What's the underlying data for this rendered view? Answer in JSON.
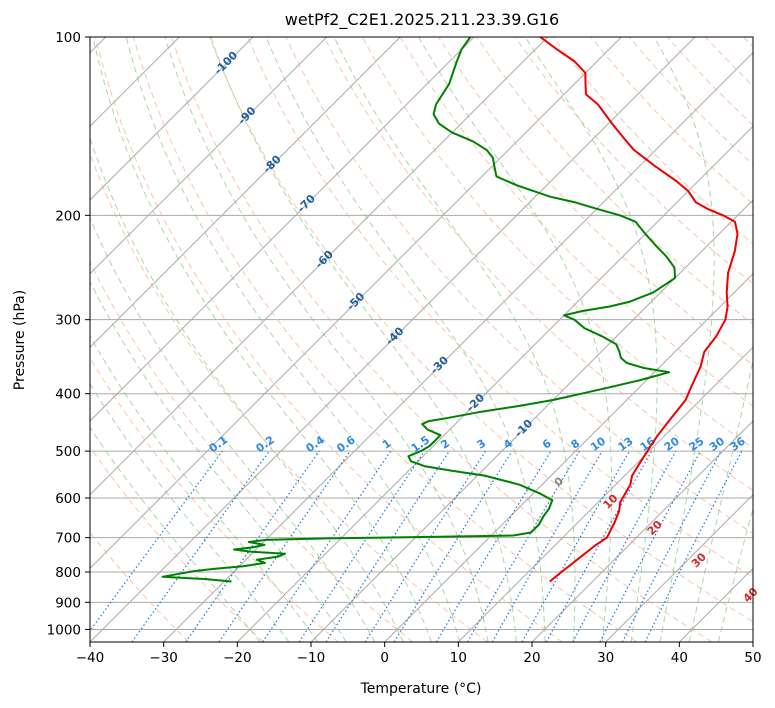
{
  "chart_data": {
    "type": "skew-t",
    "title": "wetPf2_C2E1.2025.211.23.39.G16",
    "xlabel": "Temperature (°C)",
    "ylabel": "Pressure (hPa)",
    "xlim": [
      -40,
      50
    ],
    "ylim": [
      1050,
      100
    ],
    "y_scale": "log",
    "grid": true,
    "x_ticks": [
      "−40",
      "−30",
      "−20",
      "−10",
      "0",
      "10",
      "20",
      "30",
      "40",
      "50"
    ],
    "y_ticks": [
      "100",
      "200",
      "300",
      "400",
      "500",
      "600",
      "700",
      "800",
      "900",
      "1000"
    ],
    "series": [
      {
        "color": "#ee0000",
        "role": "temperature",
        "points": [
          [
            14.2,
            830
          ],
          [
            14.5,
            800
          ],
          [
            15.0,
            760
          ],
          [
            15.5,
            720
          ],
          [
            16.0,
            700
          ],
          [
            15.5,
            680
          ],
          [
            15.0,
            660
          ],
          [
            14.0,
            630
          ],
          [
            13.0,
            610
          ],
          [
            12.5,
            590
          ],
          [
            12.0,
            570
          ],
          [
            11.0,
            550
          ],
          [
            10.5,
            530
          ],
          [
            10.0,
            510
          ],
          [
            9.5,
            490
          ],
          [
            9.0,
            470
          ],
          [
            8.5,
            440
          ],
          [
            8.0,
            410
          ],
          [
            7.0,
            390
          ],
          [
            5.5,
            360
          ],
          [
            4.0,
            340
          ],
          [
            3.5,
            320
          ],
          [
            2.5,
            300
          ],
          [
            1.0,
            285
          ],
          [
            -1.0,
            270
          ],
          [
            -3.5,
            250
          ],
          [
            -5.5,
            230
          ],
          [
            -7.5,
            215
          ],
          [
            -9.5,
            205
          ],
          [
            -12.0,
            200
          ],
          [
            -15.0,
            195
          ],
          [
            -17.5,
            190
          ],
          [
            -20.0,
            182
          ],
          [
            -23.0,
            175
          ],
          [
            -28.0,
            165
          ],
          [
            -33.0,
            155
          ],
          [
            -36.0,
            148
          ],
          [
            -39.5,
            140
          ],
          [
            -44.0,
            130
          ],
          [
            -47.0,
            125
          ],
          [
            -48.5,
            120
          ],
          [
            -50.0,
            115
          ],
          [
            -53.0,
            110
          ],
          [
            -57.0,
            105
          ],
          [
            -61.0,
            100
          ]
        ]
      },
      {
        "color": "#008000",
        "role": "dewpoint",
        "points": [
          [
            -29,
            830
          ],
          [
            -33,
            822
          ],
          [
            -36.5,
            818
          ],
          [
            -39,
            815
          ],
          [
            -37.5,
            807
          ],
          [
            -35.5,
            797
          ],
          [
            -33,
            790
          ],
          [
            -29.5,
            782
          ],
          [
            -27,
            772
          ],
          [
            -28.5,
            763
          ],
          [
            -26,
            753
          ],
          [
            -25.5,
            745
          ],
          [
            -30.5,
            739
          ],
          [
            -33,
            733
          ],
          [
            -30.8,
            727
          ],
          [
            -29.5,
            720
          ],
          [
            -32,
            712
          ],
          [
            -30,
            706
          ],
          [
            -22,
            702
          ],
          [
            -8,
            698
          ],
          [
            3,
            694
          ],
          [
            5,
            686
          ],
          [
            5,
            675
          ],
          [
            5,
            665
          ],
          [
            4.5,
            645
          ],
          [
            4.2,
            625
          ],
          [
            3.5,
            605
          ],
          [
            1,
            590
          ],
          [
            -3,
            570
          ],
          [
            -9,
            550
          ],
          [
            -14,
            540
          ],
          [
            -18.5,
            530
          ],
          [
            -21,
            520
          ],
          [
            -22,
            510
          ],
          [
            -21,
            500
          ],
          [
            -20.5,
            490
          ],
          [
            -20.5,
            480
          ],
          [
            -20.5,
            470
          ],
          [
            -23,
            460
          ],
          [
            -24.5,
            450
          ],
          [
            -24,
            445
          ],
          [
            -22,
            440
          ],
          [
            -18.5,
            430
          ],
          [
            -14,
            420
          ],
          [
            -10,
            410
          ],
          [
            -7,
            400
          ],
          [
            -4,
            390
          ],
          [
            -1,
            380
          ],
          [
            1,
            372
          ],
          [
            2,
            368
          ],
          [
            -2,
            362
          ],
          [
            -5,
            355
          ],
          [
            -6.5,
            348
          ],
          [
            -7.5,
            340
          ],
          [
            -9,
            330
          ],
          [
            -12,
            320
          ],
          [
            -15.5,
            310
          ],
          [
            -18,
            300
          ],
          [
            -20,
            295
          ],
          [
            -18,
            290
          ],
          [
            -15,
            285
          ],
          [
            -13,
            280
          ],
          [
            -11,
            270
          ],
          [
            -10,
            255
          ],
          [
            -11.5,
            245
          ],
          [
            -14,
            235
          ],
          [
            -17,
            225
          ],
          [
            -20,
            215
          ],
          [
            -23,
            205
          ],
          [
            -26,
            200
          ],
          [
            -30,
            195
          ],
          [
            -34,
            190
          ],
          [
            -38,
            186
          ],
          [
            -41,
            182
          ],
          [
            -44,
            178
          ],
          [
            -46,
            175
          ],
          [
            -48,
            172
          ],
          [
            -49,
            168
          ],
          [
            -50,
            164
          ],
          [
            -51,
            160
          ],
          [
            -53,
            155
          ],
          [
            -56,
            150
          ],
          [
            -60,
            145
          ],
          [
            -63,
            140
          ],
          [
            -65,
            135
          ],
          [
            -66,
            130
          ],
          [
            -66.5,
            125
          ],
          [
            -67,
            120
          ],
          [
            -68,
            115
          ],
          [
            -69,
            110
          ],
          [
            -70,
            105
          ],
          [
            -70.5,
            100
          ]
        ]
      }
    ],
    "dry_adiabat_labels": [
      "-100",
      "-90",
      "-80",
      "-70",
      "-60",
      "-50",
      "-40",
      "-30",
      "-20",
      "-10"
    ],
    "mixing_ratio_labels": [
      "0.1",
      "0.2",
      "0.4",
      "0.6",
      "1",
      "1.5",
      "2",
      "3",
      "4",
      "6",
      "8",
      "10",
      "13",
      "16",
      "20",
      "25",
      "30",
      "36"
    ],
    "moist_adiabat_labels": [
      "0",
      "10",
      "20",
      "30",
      "40"
    ],
    "colors": {
      "temperature": "#ee0000",
      "dewpoint": "#008000",
      "dry_adiabat": "#f4a582",
      "moist_adiabat": "#7fbf7b",
      "mixing_ratio": "#1f77d4",
      "grid": "#aaaaaa",
      "dry_adiabat_label": "#1f5f9f",
      "mixing_ratio_label": "#2a8ae6",
      "moist_adiabat_label": "#d62728",
      "zero_label": "#888888"
    }
  }
}
